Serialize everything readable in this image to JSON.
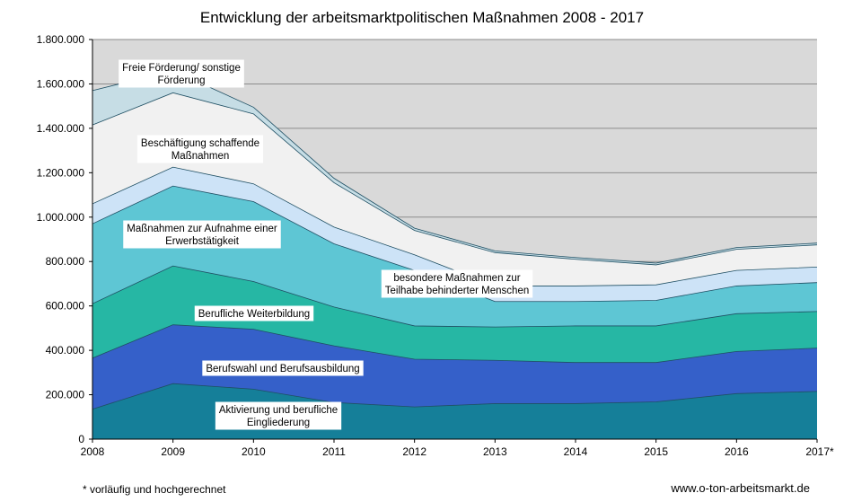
{
  "chart_data": {
    "type": "area",
    "stacked": true,
    "title": "Entwicklung der arbeitsmarktpolitischen Maßnahmen 2008 - 2017",
    "xlabel": "",
    "ylabel": "",
    "categories": [
      "2008",
      "2009",
      "2010",
      "2011",
      "2012",
      "2013",
      "2014",
      "2015",
      "2016",
      "2017*"
    ],
    "ylim": [
      0,
      1800000
    ],
    "ytick_labels": [
      "0",
      "200.000",
      "400.000",
      "600.000",
      "800.000",
      "1.000.000",
      "1.200.000",
      "1.400.000",
      "1.600.000",
      "1.800.000"
    ],
    "grid": true,
    "series": [
      {
        "name": "Aktivierung und berufliche Eingliederung",
        "color": "#157f99",
        "values": [
          135000,
          250000,
          225000,
          165000,
          145000,
          160000,
          160000,
          168000,
          205000,
          215000
        ]
      },
      {
        "name": "Berufswahl und Berufsausbildung",
        "color": "#3560c9",
        "values": [
          230000,
          265000,
          270000,
          255000,
          215000,
          195000,
          185000,
          177000,
          190000,
          195000
        ]
      },
      {
        "name": "Berufliche Weiterbildung",
        "color": "#26b7a4",
        "values": [
          245000,
          265000,
          215000,
          175000,
          150000,
          150000,
          165000,
          165000,
          170000,
          165000
        ]
      },
      {
        "name": "Maßnahmen zur Aufnahme einer Erwerbstätigkeit",
        "color": "#5ec6d4",
        "values": [
          360000,
          360000,
          360000,
          285000,
          250000,
          115000,
          110000,
          115000,
          125000,
          130000
        ]
      },
      {
        "name": "besondere Maßnahmen zur Teilhabe behinderter Menschen",
        "color": "#cde3f7",
        "values": [
          90000,
          85000,
          80000,
          75000,
          70000,
          70000,
          70000,
          70000,
          70000,
          70000
        ]
      },
      {
        "name": "Beschäftigung schaffende Maßnahmen",
        "color": "#f1f1f1",
        "values": [
          355000,
          335000,
          315000,
          200000,
          110000,
          150000,
          120000,
          90000,
          95000,
          100000
        ]
      },
      {
        "name": "Freie Förderung/ sonstige Förderung",
        "color": "#c6dde5",
        "values": [
          155000,
          100000,
          30000,
          20000,
          10000,
          8000,
          8000,
          8000,
          8000,
          8000
        ]
      }
    ],
    "series_labels": [
      {
        "lines": [
          "Freie Förderung/ sonstige",
          "Förderung"
        ]
      },
      {
        "lines": [
          "Beschäftigung schaffende",
          "Maßnahmen"
        ]
      },
      {
        "lines": [
          "Maßnahmen zur Aufnahme einer",
          "Erwerbstätigkeit"
        ]
      },
      {
        "lines": [
          "besondere Maßnahmen zur",
          "Teilhabe behinderter Menschen"
        ]
      },
      {
        "lines": [
          "Berufliche Weiterbildung"
        ]
      },
      {
        "lines": [
          "Berufswahl und Berufsausbildung"
        ]
      },
      {
        "lines": [
          "Aktivierung und berufliche",
          "Eingliederung"
        ]
      }
    ],
    "plot_background": "#d9d9d9"
  },
  "footnote": "* vorläufig und hochgerechnet",
  "source": "www.o-ton-arbeitsmarkt.de"
}
